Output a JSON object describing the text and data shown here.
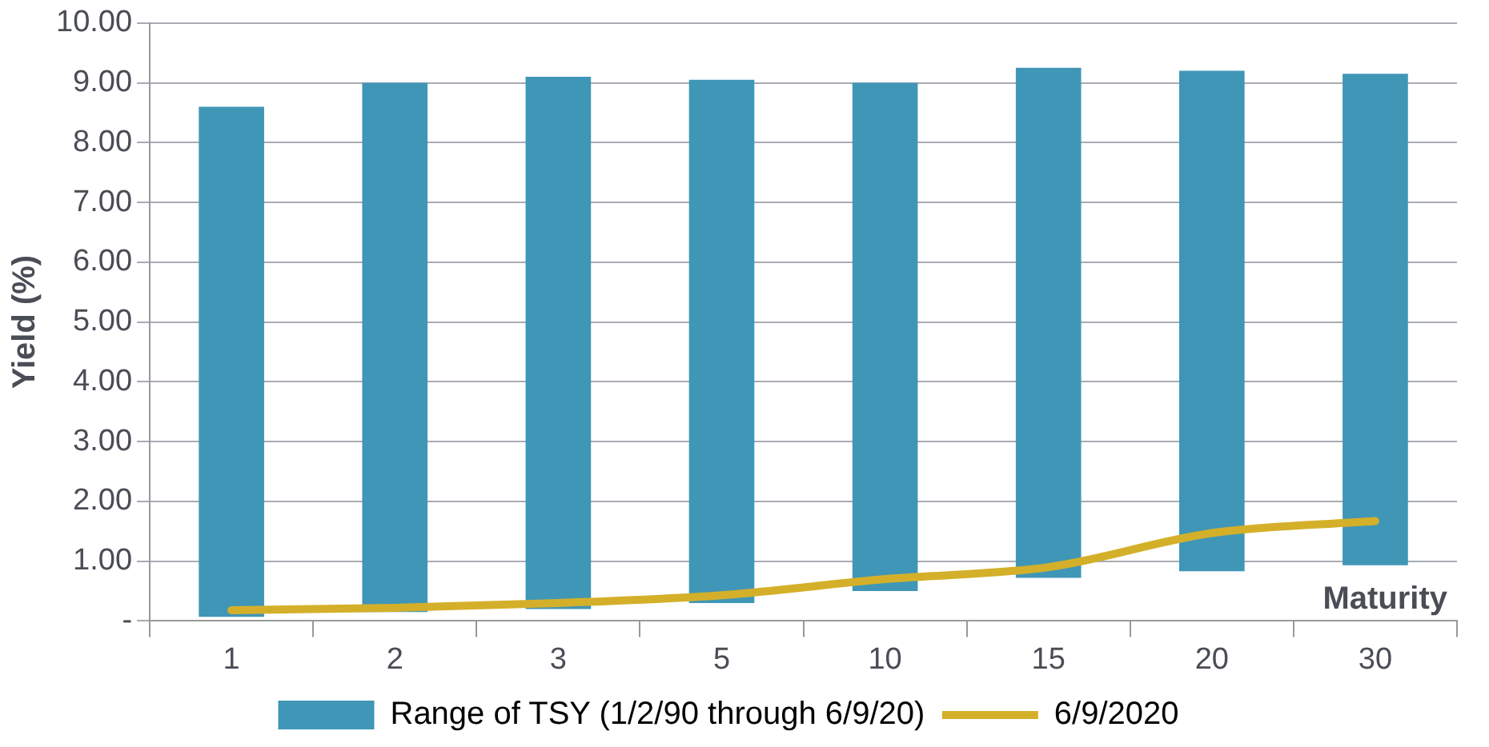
{
  "chart_data": {
    "type": "bar",
    "xlabel": "Maturity",
    "ylabel": "Yield (%)",
    "categories": [
      "1",
      "2",
      "3",
      "5",
      "10",
      "15",
      "20",
      "30"
    ],
    "series": [
      {
        "name": "Range of TSY (1/2/90 through 6/9/20)",
        "color": "#4096b6",
        "base": [
          0.07,
          0.15,
          0.2,
          0.3,
          0.5,
          0.72,
          0.83,
          0.93
        ],
        "values": [
          8.53,
          8.85,
          8.9,
          8.75,
          8.5,
          8.53,
          8.37,
          8.22
        ]
      },
      {
        "name": "6/9/2020",
        "type": "line",
        "color": "#d4b02a",
        "values": [
          0.18,
          0.22,
          0.3,
          0.43,
          0.7,
          0.9,
          1.47,
          1.67
        ]
      }
    ],
    "ylim": [
      0,
      10
    ],
    "yticks": [
      {
        "value": 0,
        "label": "-"
      },
      {
        "value": 1,
        "label": "1.00"
      },
      {
        "value": 2,
        "label": "2.00"
      },
      {
        "value": 3,
        "label": "3.00"
      },
      {
        "value": 4,
        "label": "4.00"
      },
      {
        "value": 5,
        "label": "5.00"
      },
      {
        "value": 6,
        "label": "6.00"
      },
      {
        "value": 7,
        "label": "7.00"
      },
      {
        "value": 8,
        "label": "8.00"
      },
      {
        "value": 9,
        "label": "9.00"
      },
      {
        "value": 10,
        "label": "10.00"
      }
    ],
    "grid": "y",
    "legend": "bottom",
    "marker": "none"
  }
}
